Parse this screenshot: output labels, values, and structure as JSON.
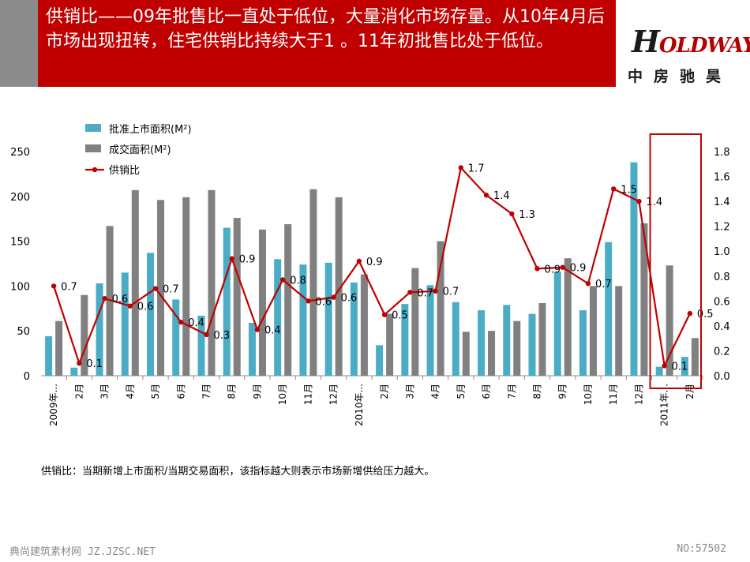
{
  "header": {
    "title": "供销比——09年批售比一直处于低位，大量消化市场存量。从10年4月后市场出现扭转，住宅供销比持续大于1 。11年初批售比处于低位。",
    "logo_brand": "HOLDWAYS",
    "logo_cn": "中房驰昊",
    "bar_color": "#c00000"
  },
  "chart_data": {
    "type": "bar",
    "categories": [
      "2009年...",
      "2月",
      "3月",
      "4月",
      "5月",
      "6月",
      "7月",
      "8月",
      "9月",
      "10月",
      "11月",
      "12月",
      "2010年...",
      "2月",
      "3月",
      "4月",
      "5月",
      "6月",
      "7月",
      "8月",
      "9月",
      "10月",
      "11月",
      "12月",
      "2011年...",
      "2月"
    ],
    "series": [
      {
        "name": "批准上市面积(M²)",
        "kind": "bar",
        "axis": "left",
        "color": "#4bacc6",
        "values": [
          44,
          9,
          103,
          115,
          137,
          85,
          67,
          165,
          59,
          130,
          124,
          126,
          104,
          34,
          80,
          101,
          82,
          73,
          79,
          69,
          116,
          73,
          149,
          238,
          10,
          21
        ]
      },
      {
        "name": "成交面积(M²)",
        "kind": "bar",
        "axis": "left",
        "color": "#808080",
        "values": [
          61,
          90,
          167,
          207,
          196,
          199,
          207,
          176,
          163,
          169,
          208,
          199,
          113,
          69,
          120,
          150,
          49,
          50,
          61,
          81,
          131,
          100,
          100,
          170,
          123,
          42
        ]
      },
      {
        "name": "供销比",
        "kind": "line",
        "axis": "right",
        "color": "#c00000",
        "values": [
          0.72,
          0.1,
          0.62,
          0.56,
          0.7,
          0.43,
          0.33,
          0.94,
          0.37,
          0.77,
          0.6,
          0.63,
          0.92,
          0.49,
          0.67,
          0.68,
          1.67,
          1.45,
          1.3,
          0.86,
          0.87,
          0.74,
          1.5,
          1.4,
          0.08,
          0.5
        ]
      }
    ],
    "data_labels": [
      "0.7",
      "0.1",
      "0.6",
      "0.6",
      "0.7",
      "0.4",
      "0.3",
      "0.9",
      "0.4",
      "0.8",
      "0.6",
      "0.6",
      "0.9",
      "0.5",
      "0.7",
      "0.7",
      "1.7",
      "1.4",
      "1.3",
      "0.9",
      "0.9",
      "0.7",
      "1.5",
      "1.4",
      "0.1",
      "0.5"
    ],
    "ylim_left": [
      0,
      250
    ],
    "yticks_left": [
      0,
      50,
      100,
      150,
      200,
      250
    ],
    "ylim_right": [
      0,
      1.8
    ],
    "yticks_right": [
      "0.0",
      "0.2",
      "0.4",
      "0.6",
      "0.8",
      "1.0",
      "1.2",
      "1.4",
      "1.6",
      "1.8"
    ],
    "legend_position": "top-left",
    "highlight_box_color": "#c00000"
  },
  "footnote": "供销比：当期新增上市面积/当期交易面积，该指标越大则表示市场新增供给压力越大。",
  "watermark": {
    "left": "典尚建筑素材网 JZ.JZSC.NET",
    "right": "NO:57502"
  }
}
